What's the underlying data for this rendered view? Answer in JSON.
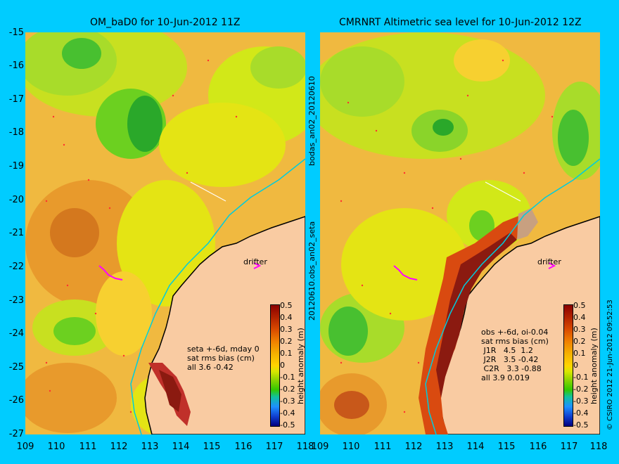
{
  "left_panel": {
    "title": "OM_baD0 for 10-Jun-2012 11Z",
    "stats": "seta +-6d, mday 0\nsat rms bias (cm)\nall 3.6 -0.42",
    "drifter": "drifter"
  },
  "right_panel": {
    "title": "CMRNRT Altimetric sea level  for 10-Jun-2012 12Z",
    "stats": "obs +-6d, oi-0.04\nsat rms bias (cm)\n J1R   4.5  1.2\n J2R   3.5 -0.42\n C2R   3.3 -0.88\nall 3.9 0.019",
    "drifter": "drifter"
  },
  "side_labels": {
    "top": "bodas_an02_20120610",
    "bottom": "20120610.obs_an02_seta"
  },
  "copyright": "© CSIRO 2012   21-Jun-2012 09:52:53",
  "y_ticks": [
    "-15",
    "-16",
    "-17",
    "-18",
    "-19",
    "-20",
    "-21",
    "-22",
    "-23",
    "-24",
    "-25",
    "-26",
    "-27"
  ],
  "x_ticks": [
    "109",
    "110",
    "111",
    "112",
    "113",
    "114",
    "115",
    "116",
    "117",
    "118"
  ],
  "colorbar": {
    "title": "height anomaly (m)",
    "ticks": [
      "0.5",
      "0.4",
      "0.3",
      "0.2",
      "0.1",
      "0",
      "-0.1",
      "-0.2",
      "-0.3",
      "-0.4",
      "-0.5"
    ]
  },
  "colors": {
    "background": "#00ccff",
    "land": "#f9cba2",
    "coastline": "#000000"
  }
}
